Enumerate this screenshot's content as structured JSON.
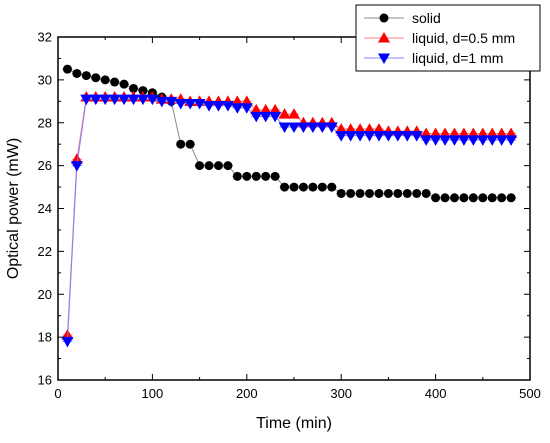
{
  "chart_data": {
    "type": "scatter",
    "title": "",
    "xlabel": "Time (min)",
    "ylabel": "Optical power (mW)",
    "xlim": [
      0,
      500
    ],
    "ylim": [
      16,
      32
    ],
    "xticks": [
      0,
      100,
      200,
      300,
      400,
      500
    ],
    "yticks": [
      16,
      18,
      20,
      22,
      24,
      26,
      28,
      30,
      32
    ],
    "grid": false,
    "legend_position": "top-right",
    "series": [
      {
        "name": "solid",
        "marker": "circle",
        "color": "#000000",
        "line_color": "#888888",
        "x": [
          10,
          20,
          30,
          40,
          50,
          60,
          70,
          80,
          90,
          100,
          110,
          120,
          130,
          140,
          150,
          160,
          170,
          180,
          190,
          200,
          210,
          220,
          230,
          240,
          250,
          260,
          270,
          280,
          290,
          300,
          310,
          320,
          330,
          340,
          350,
          360,
          370,
          380,
          390,
          400,
          410,
          420,
          430,
          440,
          450,
          460,
          470,
          480
        ],
        "y": [
          30.5,
          30.3,
          30.2,
          30.1,
          30.0,
          29.9,
          29.8,
          29.6,
          29.5,
          29.4,
          29.2,
          29.0,
          27.0,
          27.0,
          26.0,
          26.0,
          26.0,
          26.0,
          25.5,
          25.5,
          25.5,
          25.5,
          25.5,
          25.0,
          25.0,
          25.0,
          25.0,
          25.0,
          25.0,
          24.7,
          24.7,
          24.7,
          24.7,
          24.7,
          24.7,
          24.7,
          24.7,
          24.7,
          24.7,
          24.5,
          24.5,
          24.5,
          24.5,
          24.5,
          24.5,
          24.5,
          24.5,
          24.5
        ]
      },
      {
        "name": "liquid, d=0.5 mm",
        "marker": "triangle-up",
        "color": "#ff0000",
        "line_color": "#ff8080",
        "x": [
          10,
          20,
          30,
          40,
          50,
          60,
          70,
          80,
          90,
          100,
          110,
          120,
          130,
          140,
          150,
          160,
          170,
          180,
          190,
          200,
          210,
          220,
          230,
          240,
          250,
          260,
          270,
          280,
          290,
          300,
          310,
          320,
          330,
          340,
          350,
          360,
          370,
          380,
          390,
          400,
          410,
          420,
          430,
          440,
          450,
          460,
          470,
          480
        ],
        "y": [
          18.1,
          26.3,
          29.2,
          29.2,
          29.2,
          29.2,
          29.2,
          29.2,
          29.2,
          29.2,
          29.1,
          29.1,
          29.1,
          29.0,
          29.0,
          29.0,
          29.0,
          29.0,
          29.0,
          29.0,
          28.6,
          28.6,
          28.6,
          28.4,
          28.4,
          28.0,
          28.0,
          28.0,
          28.0,
          27.7,
          27.7,
          27.7,
          27.7,
          27.7,
          27.6,
          27.6,
          27.6,
          27.6,
          27.5,
          27.5,
          27.5,
          27.5,
          27.5,
          27.5,
          27.5,
          27.5,
          27.5,
          27.5
        ]
      },
      {
        "name": "liquid, d=1 mm",
        "marker": "triangle-down",
        "color": "#0000ff",
        "line_color": "#8080ff",
        "x": [
          10,
          20,
          30,
          40,
          50,
          60,
          70,
          80,
          90,
          100,
          110,
          120,
          130,
          140,
          150,
          160,
          170,
          180,
          190,
          200,
          210,
          220,
          230,
          240,
          250,
          260,
          270,
          280,
          290,
          300,
          310,
          320,
          330,
          340,
          350,
          360,
          370,
          380,
          390,
          400,
          410,
          420,
          430,
          440,
          450,
          460,
          470,
          480
        ],
        "y": [
          17.8,
          26.0,
          29.1,
          29.1,
          29.1,
          29.1,
          29.1,
          29.1,
          29.1,
          29.1,
          29.0,
          29.0,
          28.9,
          28.9,
          28.9,
          28.8,
          28.8,
          28.8,
          28.7,
          28.7,
          28.3,
          28.3,
          28.3,
          27.8,
          27.8,
          27.8,
          27.8,
          27.8,
          27.8,
          27.4,
          27.4,
          27.4,
          27.4,
          27.4,
          27.4,
          27.4,
          27.4,
          27.4,
          27.2,
          27.2,
          27.2,
          27.2,
          27.2,
          27.2,
          27.2,
          27.2,
          27.2,
          27.2
        ]
      }
    ]
  }
}
